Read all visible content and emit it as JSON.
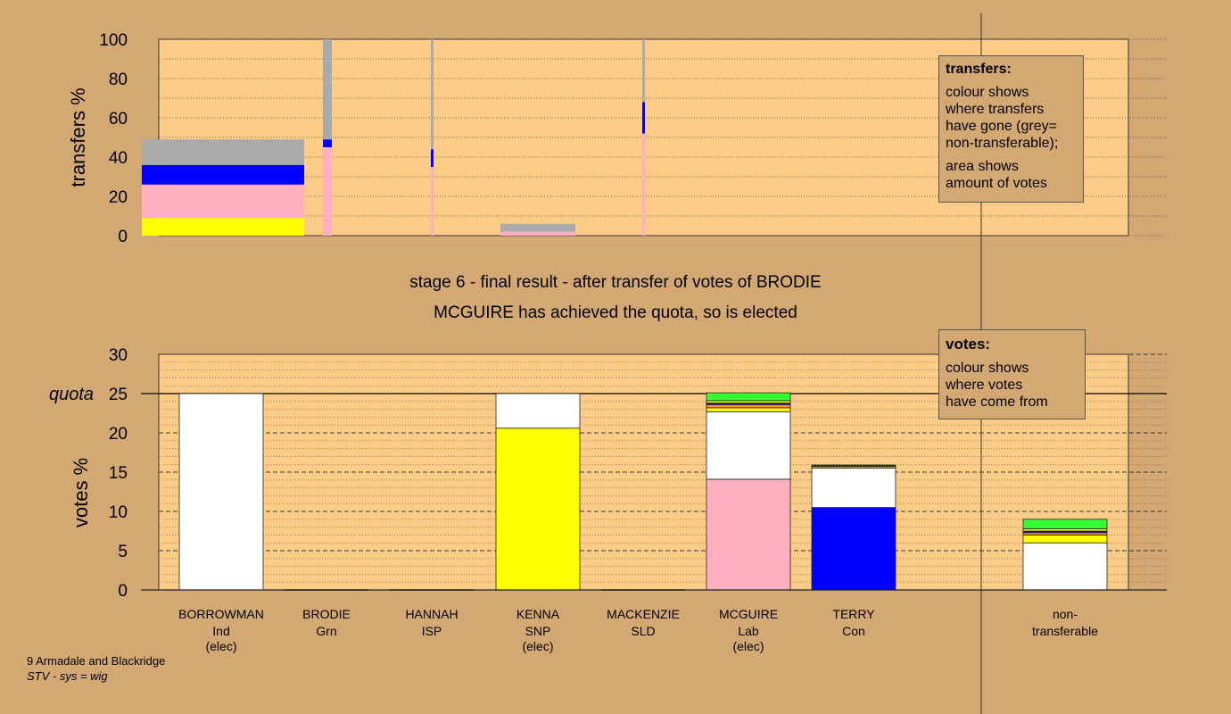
{
  "header": {
    "stage_line": "stage 6 - final result - after transfer of votes of BRODIE",
    "elected_line": "MCGUIRE has achieved the quota, so is elected"
  },
  "transfers_box": {
    "title": "transfers:",
    "lines1": [
      "colour shows",
      "where transfers",
      "have gone (grey=",
      "non-transferable);"
    ],
    "lines2": [
      "area shows",
      "amount of votes"
    ]
  },
  "votes_box": {
    "title": "votes:",
    "lines": [
      "colour shows",
      "where votes",
      "have come from"
    ]
  },
  "footer": {
    "ward": "9 Armadale and Blackridge",
    "system": "STV - sys = wig"
  },
  "colors": {
    "ind": "#ffffff",
    "grn": "#ffb0c0",
    "isp": "#ffb0c0",
    "snp": "#ffff00",
    "sld": "#ff9900",
    "lab": "#ffb0c0",
    "con": "#0000ff",
    "nontransferable": "#aaaaaa",
    "green": "#33ff33",
    "plot_bg": "#ffcc88",
    "page_bg": "#d4a872"
  },
  "chart_data": [
    {
      "type": "bar",
      "name": "transfers",
      "ylabel": "transfers %",
      "ylim": [
        0,
        100
      ],
      "yticks": [
        0,
        20,
        40,
        60,
        80,
        100
      ],
      "columns": [
        {
          "candidate": "BORROWMAN",
          "width_pct": 100,
          "segments": [
            {
              "color": "#ffff00",
              "value": 9
            },
            {
              "color": "#ffb0c0",
              "value": 17
            },
            {
              "color": "#0000ff",
              "value": 10
            },
            {
              "color": "#aaaaaa",
              "value": 13
            }
          ]
        },
        {
          "candidate": "BRODIE",
          "width_pct": 6,
          "segments": [
            {
              "color": "#ffb0c0",
              "value": 45
            },
            {
              "color": "#0000ff",
              "value": 4
            },
            {
              "color": "#aaaaaa",
              "value": 51
            }
          ]
        },
        {
          "candidate": "HANNAH",
          "width_pct": 2,
          "segments": [
            {
              "color": "#ffb0c0",
              "value": 35
            },
            {
              "color": "#0000ff",
              "value": 9
            },
            {
              "color": "#aaaaaa",
              "value": 56
            }
          ]
        },
        {
          "candidate": "KENNA",
          "width_pct": 46,
          "segments": [
            {
              "color": "#ffb0c0",
              "value": 2
            },
            {
              "color": "#aaaaaa",
              "value": 4
            }
          ]
        },
        {
          "candidate": "MACKENZIE",
          "width_pct": 2,
          "segments": [
            {
              "color": "#ffb0c0",
              "value": 52
            },
            {
              "color": "#0000ff",
              "value": 16
            },
            {
              "color": "#aaaaaa",
              "value": 32
            }
          ]
        }
      ]
    },
    {
      "type": "bar",
      "name": "votes",
      "ylabel": "votes %",
      "ylim": [
        0,
        30
      ],
      "yticks": [
        0,
        5,
        10,
        15,
        20,
        25,
        30
      ],
      "quota": 25,
      "quota_label": "quota",
      "categories": [
        {
          "name": "BORROWMAN",
          "party": "Ind",
          "status": "(elec)",
          "segments": [
            {
              "color": "#ffffff",
              "value": 25
            }
          ]
        },
        {
          "name": "BRODIE",
          "party": "Grn",
          "status": "",
          "segments": [
            {
              "color": "#ffb0c0",
              "value": 0
            }
          ]
        },
        {
          "name": "HANNAH",
          "party": "ISP",
          "status": "",
          "segments": [
            {
              "color": "#ffb0c0",
              "value": 0
            }
          ]
        },
        {
          "name": "KENNA",
          "party": "SNP",
          "status": "(elec)",
          "segments": [
            {
              "color": "#ffff00",
              "value": 20.6
            },
            {
              "color": "#ffffff",
              "value": 4.4
            }
          ]
        },
        {
          "name": "MACKENZIE",
          "party": "SLD",
          "status": "",
          "segments": [
            {
              "color": "#ff9900",
              "value": 0
            }
          ]
        },
        {
          "name": "MCGUIRE",
          "party": "Lab",
          "status": "(elec)",
          "segments": [
            {
              "color": "#ffb0c0",
              "value": 14.1
            },
            {
              "color": "#ffffff",
              "value": 8.6
            },
            {
              "color": "#ffff00",
              "value": 0.5
            },
            {
              "color": "#ff9900",
              "value": 0.4
            },
            {
              "color": "#0000ff",
              "value": 0.2
            },
            {
              "color": "#ffff00",
              "value": 0.3
            },
            {
              "color": "#33ff33",
              "value": 1.0
            }
          ]
        },
        {
          "name": "TERRY",
          "party": "Con",
          "status": "",
          "segments": [
            {
              "color": "#0000ff",
              "value": 10.5
            },
            {
              "color": "#ffffff",
              "value": 5.0
            },
            {
              "color": "#ffff00",
              "value": 0.2
            },
            {
              "color": "#333333",
              "value": 0.2
            }
          ]
        },
        {
          "name": "non-",
          "party": "transferable",
          "status": "",
          "segments": [
            {
              "color": "#ffffff",
              "value": 6.0
            },
            {
              "color": "#ffff00",
              "value": 1.0
            },
            {
              "color": "#ff9900",
              "value": 0.3
            },
            {
              "color": "#0000ff",
              "value": 0.2
            },
            {
              "color": "#ffff00",
              "value": 0.3
            },
            {
              "color": "#33ff33",
              "value": 1.2
            }
          ]
        }
      ]
    }
  ]
}
